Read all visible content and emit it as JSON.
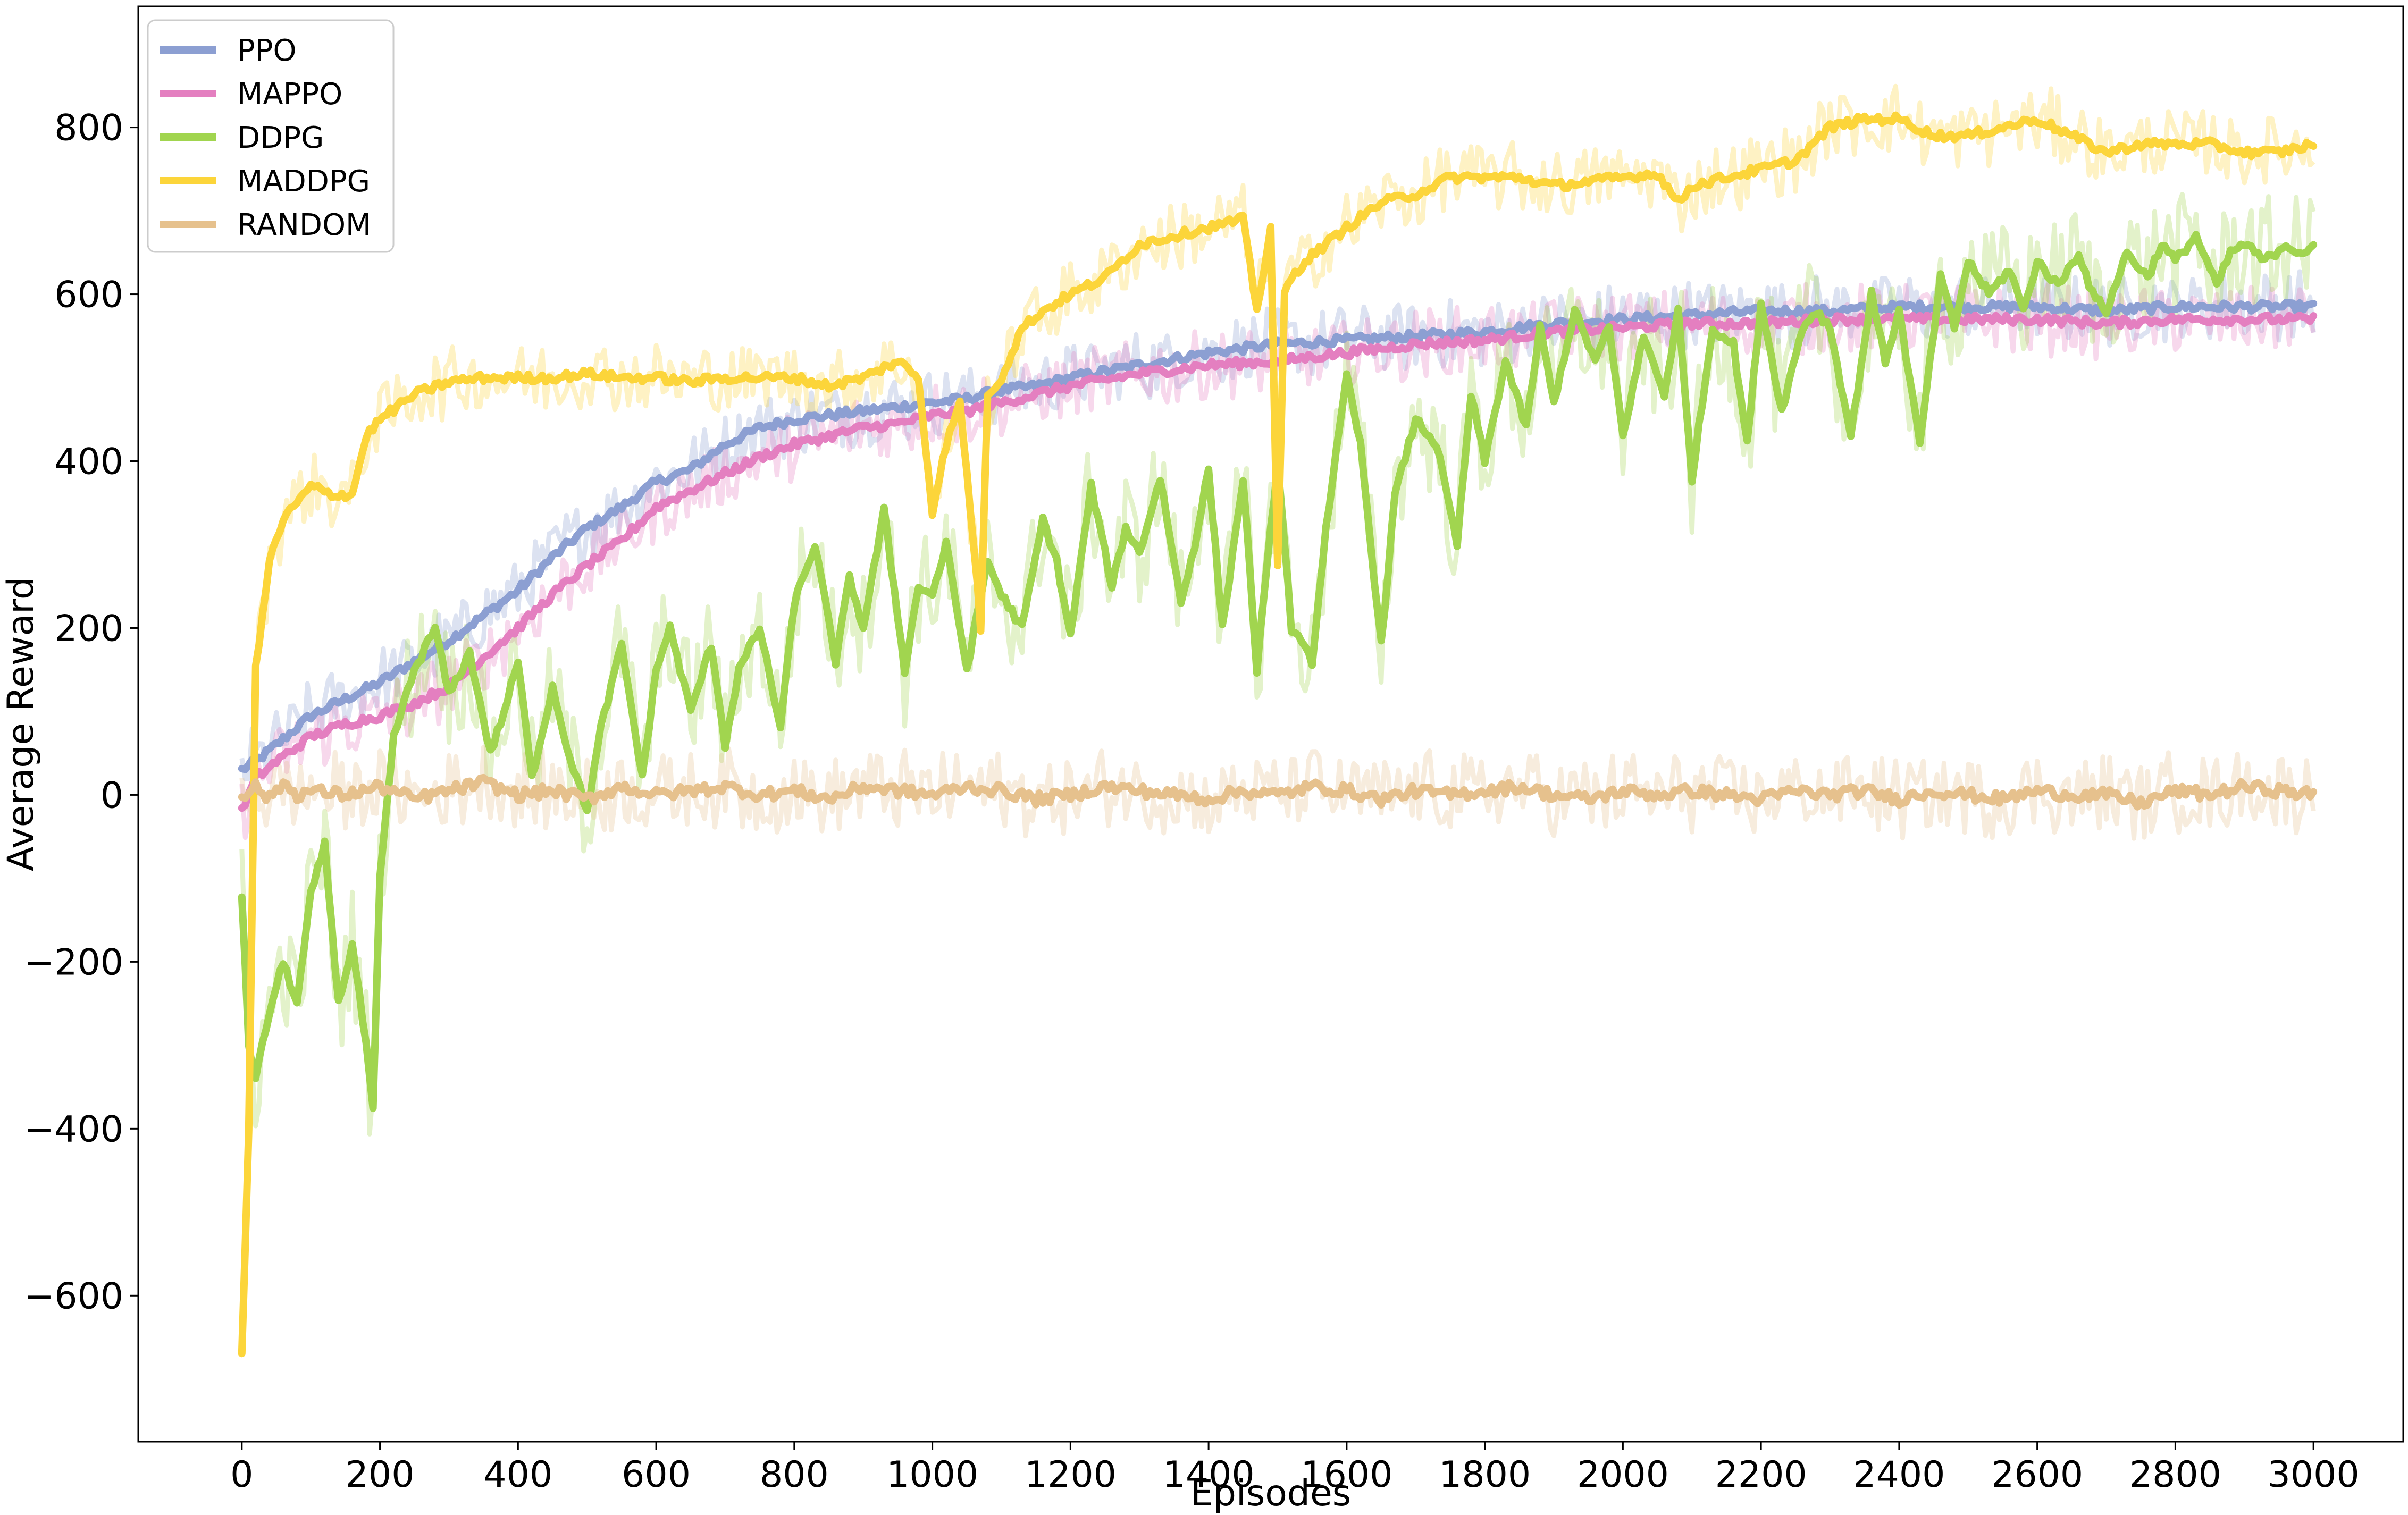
{
  "chart_data": {
    "type": "line",
    "title": "",
    "xlabel": "Episodes",
    "ylabel": "Average Reward",
    "xlim": [
      -150,
      3130
    ],
    "ylim": [
      -775,
      945
    ],
    "xticks": [
      0,
      200,
      400,
      600,
      800,
      1000,
      1200,
      1400,
      1600,
      1800,
      2000,
      2200,
      2400,
      2600,
      2800,
      3000
    ],
    "yticks": [
      -600,
      -400,
      -200,
      0,
      200,
      400,
      600,
      800
    ],
    "ytick_labels": [
      "−600",
      "−400",
      "−200",
      "0",
      "200",
      "400",
      "600",
      "800"
    ],
    "grid": false,
    "legend_position": "top-left",
    "series": [
      {
        "name": "PPO",
        "color": "#8c9fd2",
        "x": [
          0,
          20,
          50,
          100,
          150,
          200,
          250,
          300,
          350,
          400,
          450,
          500,
          550,
          600,
          650,
          700,
          750,
          800,
          850,
          900,
          950,
          1000,
          1050,
          1100,
          1150,
          1200,
          1300,
          1400,
          1500,
          1600,
          1700,
          1800,
          1900,
          2000,
          2100,
          2200,
          2300,
          2400,
          2500,
          2600,
          2700,
          2800,
          2900,
          3000
        ],
        "y": [
          30,
          40,
          60,
          95,
          115,
          135,
          160,
          185,
          215,
          245,
          285,
          320,
          345,
          375,
          390,
          420,
          440,
          450,
          455,
          460,
          465,
          470,
          475,
          485,
          490,
          500,
          515,
          530,
          540,
          545,
          550,
          555,
          565,
          570,
          575,
          580,
          580,
          585,
          585,
          585,
          580,
          585,
          585,
          585
        ]
      },
      {
        "name": "MAPPO",
        "color": "#e47fc0",
        "x": [
          0,
          20,
          50,
          100,
          150,
          200,
          250,
          300,
          350,
          400,
          450,
          500,
          550,
          600,
          650,
          700,
          750,
          800,
          850,
          900,
          950,
          1000,
          1050,
          1100,
          1150,
          1200,
          1300,
          1400,
          1500,
          1600,
          1700,
          1800,
          1900,
          2000,
          2100,
          2200,
          2300,
          2400,
          2500,
          2600,
          2700,
          2800,
          2900,
          3000
        ],
        "y": [
          -20,
          20,
          40,
          70,
          85,
          95,
          110,
          130,
          165,
          200,
          240,
          275,
          305,
          345,
          365,
          385,
          405,
          420,
          430,
          440,
          445,
          455,
          460,
          470,
          480,
          490,
          505,
          515,
          520,
          530,
          540,
          545,
          555,
          560,
          565,
          565,
          570,
          570,
          570,
          570,
          565,
          570,
          570,
          570
        ]
      },
      {
        "name": "DDPG",
        "color": "#a1d54f",
        "x": [
          0,
          10,
          20,
          40,
          60,
          80,
          100,
          120,
          140,
          160,
          180,
          190,
          200,
          220,
          250,
          280,
          300,
          330,
          360,
          380,
          400,
          420,
          450,
          470,
          500,
          520,
          550,
          580,
          600,
          620,
          650,
          680,
          700,
          720,
          750,
          780,
          800,
          830,
          860,
          880,
          900,
          930,
          960,
          980,
          1000,
          1020,
          1050,
          1080,
          1100,
          1130,
          1160,
          1180,
          1200,
          1230,
          1260,
          1280,
          1300,
          1330,
          1360,
          1380,
          1400,
          1420,
          1450,
          1470,
          1500,
          1520,
          1550,
          1570,
          1600,
          1620,
          1650,
          1670,
          1700,
          1730,
          1760,
          1780,
          1800,
          1830,
          1860,
          1880,
          1900,
          1930,
          1960,
          1980,
          2000,
          2030,
          2060,
          2080,
          2100,
          2130,
          2160,
          2180,
          2200,
          2230,
          2260,
          2280,
          2300,
          2330,
          2360,
          2380,
          2400,
          2430,
          2460,
          2480,
          2500,
          2530,
          2560,
          2580,
          2600,
          2630,
          2660,
          2680,
          2700,
          2730,
          2760,
          2780,
          2800,
          2830,
          2860,
          2880,
          2900,
          2930,
          2960,
          2980,
          3000
        ],
        "y": [
          -120,
          -300,
          -340,
          -260,
          -200,
          -250,
          -120,
          -60,
          -250,
          -180,
          -300,
          -380,
          -100,
          70,
          150,
          200,
          120,
          170,
          50,
          100,
          160,
          20,
          130,
          60,
          -20,
          80,
          180,
          20,
          150,
          200,
          100,
          180,
          60,
          150,
          200,
          80,
          230,
          300,
          160,
          260,
          200,
          340,
          150,
          250,
          240,
          300,
          150,
          280,
          240,
          200,
          330,
          280,
          190,
          370,
          250,
          320,
          290,
          380,
          230,
          300,
          390,
          200,
          380,
          150,
          400,
          200,
          160,
          320,
          500,
          420,
          180,
          360,
          450,
          420,
          300,
          480,
          400,
          520,
          440,
          560,
          470,
          580,
          520,
          560,
          430,
          550,
          480,
          580,
          380,
          560,
          540,
          420,
          590,
          460,
          560,
          580,
          560,
          430,
          600,
          520,
          580,
          420,
          620,
          560,
          640,
          600,
          630,
          580,
          640,
          610,
          650,
          600,
          580,
          650,
          620,
          660,
          640,
          670,
          610,
          650,
          660,
          640,
          660,
          650,
          655
        ]
      },
      {
        "name": "MADDPG",
        "color": "#fcd53a",
        "x": [
          0,
          10,
          20,
          40,
          60,
          80,
          100,
          130,
          160,
          180,
          200,
          250,
          300,
          350,
          400,
          450,
          500,
          550,
          600,
          650,
          700,
          750,
          800,
          850,
          900,
          950,
          980,
          1000,
          1020,
          1040,
          1060,
          1070,
          1080,
          1100,
          1130,
          1160,
          1200,
          1250,
          1300,
          1350,
          1400,
          1450,
          1470,
          1490,
          1500,
          1510,
          1520,
          1540,
          1570,
          1600,
          1650,
          1700,
          1750,
          1800,
          1850,
          1900,
          1950,
          2000,
          2050,
          2080,
          2100,
          2150,
          2200,
          2250,
          2300,
          2350,
          2400,
          2450,
          2500,
          2550,
          2600,
          2650,
          2700,
          2750,
          2800,
          2850,
          2900,
          2950,
          3000
        ],
        "y": [
          -670,
          -400,
          150,
          280,
          330,
          350,
          370,
          360,
          360,
          430,
          450,
          480,
          495,
          500,
          500,
          500,
          505,
          500,
          500,
          495,
          500,
          500,
          500,
          490,
          500,
          520,
          500,
          340,
          420,
          470,
          300,
          200,
          480,
          500,
          560,
          580,
          600,
          620,
          660,
          670,
          680,
          690,
          580,
          680,
          270,
          600,
          620,
          640,
          660,
          680,
          710,
          720,
          740,
          740,
          740,
          730,
          735,
          740,
          745,
          710,
          730,
          740,
          750,
          760,
          800,
          810,
          810,
          790,
          790,
          800,
          810,
          790,
          770,
          780,
          780,
          780,
          770,
          770,
          780
        ]
      },
      {
        "name": "RANDOM",
        "color": "#e6c18d",
        "x": [
          0,
          20,
          40,
          60,
          80,
          100,
          150,
          200,
          250,
          300,
          350,
          400,
          450,
          500,
          550,
          600,
          650,
          700,
          750,
          800,
          850,
          900,
          950,
          1000,
          1050,
          1100,
          1150,
          1200,
          1250,
          1300,
          1350,
          1400,
          1450,
          1500,
          1550,
          1600,
          1650,
          1700,
          1750,
          1800,
          1850,
          1900,
          1950,
          2000,
          2050,
          2100,
          2150,
          2200,
          2250,
          2300,
          2350,
          2400,
          2450,
          2500,
          2550,
          2600,
          2650,
          2700,
          2750,
          2800,
          2850,
          2900,
          2950,
          3000
        ],
        "y": [
          0,
          10,
          -5,
          15,
          0,
          5,
          0,
          10,
          -5,
          5,
          15,
          0,
          5,
          -5,
          10,
          0,
          5,
          10,
          0,
          5,
          -5,
          10,
          5,
          0,
          10,
          5,
          -5,
          0,
          10,
          5,
          0,
          -5,
          5,
          0,
          10,
          5,
          -5,
          5,
          0,
          5,
          10,
          0,
          -5,
          5,
          0,
          5,
          0,
          -5,
          5,
          0,
          5,
          -5,
          5,
          0,
          -5,
          5,
          0,
          0,
          -10,
          5,
          0,
          10,
          5,
          0
        ]
      }
    ]
  }
}
